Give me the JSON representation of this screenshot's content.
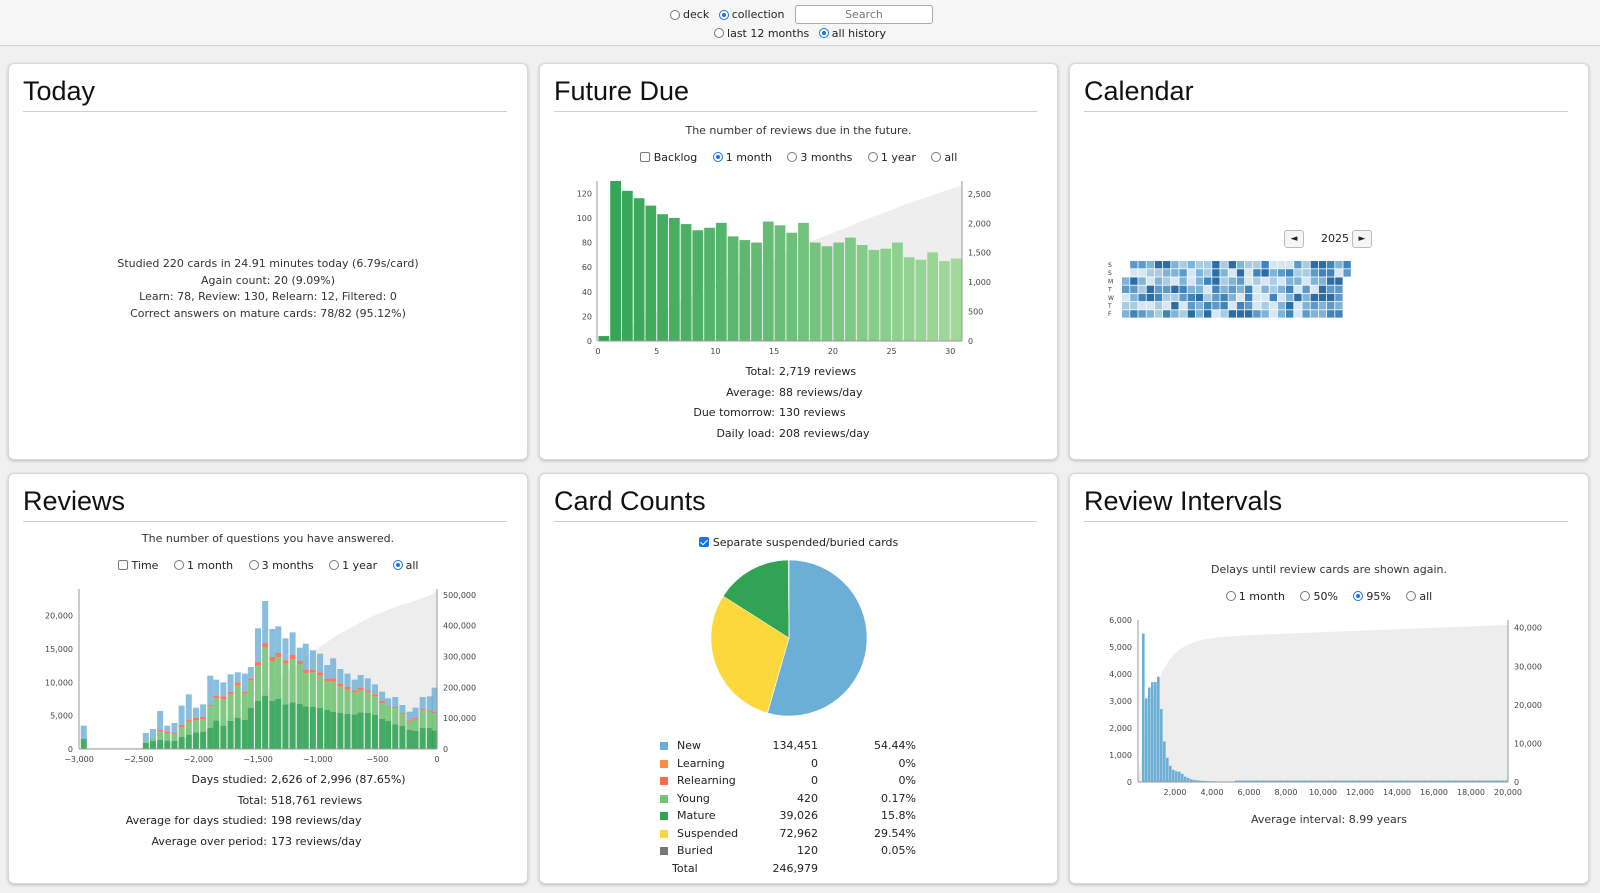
{
  "topbar": {
    "scope": [
      {
        "label": "deck",
        "selected": false
      },
      {
        "label": "collection",
        "selected": true
      }
    ],
    "search_placeholder": "Search",
    "range": [
      {
        "label": "last 12 months",
        "selected": false
      },
      {
        "label": "all history",
        "selected": true
      }
    ]
  },
  "today": {
    "title": "Today",
    "lines": [
      "Studied 220 cards in 24.91 minutes today (6.79s/card)",
      "Again count: 20 (9.09%)",
      "Learn: 78, Review: 130, Relearn: 12, Filtered: 0",
      "Correct answers on mature cards: 78/82 (95.12%)"
    ]
  },
  "future_due": {
    "title": "Future Due",
    "subtitle": "The number of reviews due in the future.",
    "backlog_label": "Backlog",
    "options": [
      {
        "label": "1 month",
        "selected": true
      },
      {
        "label": "3 months",
        "selected": false
      },
      {
        "label": "1 year",
        "selected": false
      },
      {
        "label": "all",
        "selected": false
      }
    ],
    "stats": [
      {
        "label": "Total:",
        "value": "2,719 reviews"
      },
      {
        "label": "Average:",
        "value": "88 reviews/day"
      },
      {
        "label": "Due tomorrow:",
        "value": "130 reviews"
      },
      {
        "label": "Daily load:",
        "value": "208 reviews/day"
      }
    ]
  },
  "calendar": {
    "title": "Calendar",
    "year": "2025",
    "prev_icon": "◄",
    "next_icon": "►",
    "day_labels": [
      "S",
      "S",
      "M",
      "T",
      "W",
      "T",
      "F"
    ]
  },
  "reviews": {
    "title": "Reviews",
    "subtitle": "The number of questions you have answered.",
    "time_label": "Time",
    "options": [
      {
        "label": "1 month",
        "selected": false
      },
      {
        "label": "3 months",
        "selected": false
      },
      {
        "label": "1 year",
        "selected": false
      },
      {
        "label": "all",
        "selected": true
      }
    ],
    "stats": [
      {
        "label": "Days studied:",
        "value": "2,626 of 2,996 (87.65%)"
      },
      {
        "label": "Total:",
        "value": "518,761 reviews"
      },
      {
        "label": "Average for days studied:",
        "value": "198 reviews/day"
      },
      {
        "label": "Average over period:",
        "value": "173 reviews/day"
      }
    ]
  },
  "card_counts": {
    "title": "Card Counts",
    "separate_label": "Separate suspended/buried cards",
    "rows": [
      {
        "label": "New",
        "count": "134,451",
        "pct": "54.44%",
        "color": "#6baed6"
      },
      {
        "label": "Learning",
        "count": "0",
        "pct": "0%",
        "color": "#fd8d3c"
      },
      {
        "label": "Relearning",
        "count": "0",
        "pct": "0%",
        "color": "#fb6a4a"
      },
      {
        "label": "Young",
        "count": "420",
        "pct": "0.17%",
        "color": "#74c476"
      },
      {
        "label": "Mature",
        "count": "39,026",
        "pct": "15.8%",
        "color": "#31a354"
      },
      {
        "label": "Suspended",
        "count": "72,962",
        "pct": "29.54%",
        "color": "#fdd83c"
      },
      {
        "label": "Buried",
        "count": "120",
        "pct": "0.05%",
        "color": "#777777"
      }
    ],
    "total_label": "Total",
    "total_value": "246,979"
  },
  "review_intervals": {
    "title": "Review Intervals",
    "subtitle": "Delays until review cards are shown again.",
    "options": [
      {
        "label": "1 month",
        "selected": false
      },
      {
        "label": "50%",
        "selected": false
      },
      {
        "label": "95%",
        "selected": true
      },
      {
        "label": "all",
        "selected": false
      }
    ],
    "average": "Average interval: 8.99 years"
  },
  "chart_data": [
    {
      "id": "future_due",
      "type": "bar",
      "x": [
        0,
        1,
        2,
        3,
        4,
        5,
        6,
        7,
        8,
        9,
        10,
        11,
        12,
        13,
        14,
        15,
        16,
        17,
        18,
        19,
        20,
        21,
        22,
        23,
        24,
        25,
        26,
        27,
        28,
        29,
        30
      ],
      "values": [
        4,
        130,
        122,
        116,
        110,
        103,
        100,
        95,
        90,
        92,
        96,
        85,
        82,
        80,
        97,
        94,
        88,
        96,
        80,
        77,
        80,
        84,
        78,
        74,
        75,
        80,
        68,
        66,
        72,
        65,
        67
      ],
      "cumulative_ylim": [
        0,
        2719
      ],
      "xticks": [
        0,
        5,
        10,
        15,
        20,
        25,
        30
      ],
      "yticks_left": [
        0,
        20,
        40,
        60,
        80,
        100,
        120
      ],
      "yticks_right": [
        0,
        500,
        1000,
        1500,
        2000,
        2500
      ],
      "ylim_left": [
        0,
        130
      ],
      "ylim_right": [
        0,
        2719
      ],
      "color_start": "#31a354",
      "color_end": "#a1d99b"
    },
    {
      "id": "reviews",
      "type": "bar",
      "xlim": [
        -3000,
        0
      ],
      "xticks": [
        -3000,
        -2500,
        -2000,
        -1500,
        -1000,
        -500,
        0
      ],
      "yticks_left": [
        0,
        5000,
        10000,
        15000,
        20000
      ],
      "yticks_right": [
        0,
        100000,
        200000,
        300000,
        400000,
        500000
      ],
      "ylim_left": [
        0,
        24000
      ],
      "ylim_right": [
        0,
        518761
      ],
      "series": [
        {
          "name": "Mature",
          "color": "#31a354",
          "values": [
            1500,
            0,
            0,
            0,
            0,
            0,
            0,
            0,
            0,
            900,
            1200,
            1400,
            1300,
            1200,
            1800,
            2100,
            2500,
            2600,
            3200,
            4300,
            3500,
            4200,
            4700,
            4400,
            6200,
            7200,
            8000,
            7200,
            7500,
            6700,
            7000,
            6800,
            6400,
            6300,
            6200,
            5900,
            5600,
            5400,
            5300,
            5200,
            5500,
            5400,
            5100,
            4500,
            4200,
            3700,
            3500,
            2900,
            2700,
            3200,
            3200,
            2800
          ]
        },
        {
          "name": "Young",
          "color": "#74c476",
          "values": [
            0,
            0,
            0,
            0,
            0,
            0,
            0,
            0,
            0,
            200,
            500,
            1200,
            1000,
            1000,
            1500,
            2000,
            1800,
            1900,
            3200,
            3300,
            3900,
            4000,
            4800,
            3900,
            4100,
            5300,
            7200,
            6000,
            6300,
            6100,
            6500,
            5900,
            5000,
            5200,
            4800,
            4200,
            4500,
            4000,
            3600,
            3300,
            3300,
            3100,
            2800,
            2400,
            2000,
            2400,
            1700,
            1200,
            1800,
            2600,
            2400,
            2600
          ]
        },
        {
          "name": "Relearning",
          "color": "#fb6a4a",
          "values": [
            0,
            0,
            0,
            0,
            0,
            0,
            0,
            0,
            0,
            0,
            0,
            300,
            300,
            200,
            300,
            300,
            400,
            300,
            200,
            400,
            500,
            400,
            500,
            300,
            300,
            600,
            700,
            600,
            600,
            500,
            600,
            500,
            500,
            400,
            500,
            400,
            500,
            400,
            400,
            300,
            400,
            300,
            300,
            300,
            200,
            200,
            200,
            200,
            200,
            200,
            200,
            200
          ]
        },
        {
          "name": "New",
          "color": "#6baed6",
          "values": [
            2000,
            0,
            0,
            0,
            0,
            0,
            0,
            0,
            0,
            1300,
            1300,
            2800,
            900,
            1500,
            2900,
            3800,
            1500,
            1900,
            4400,
            2400,
            2100,
            2600,
            1500,
            2700,
            1700,
            5000,
            6300,
            4200,
            4000,
            3300,
            3400,
            2000,
            3900,
            2900,
            2800,
            2100,
            3000,
            2200,
            2000,
            1600,
            1900,
            1800,
            1500,
            1400,
            1200,
            1500,
            1200,
            1300,
            1500,
            1800,
            2100,
            3600
          ]
        }
      ],
      "x": [
        -2960,
        -2900,
        -2840,
        -2780,
        -2720,
        -2660,
        -2600,
        -2540,
        -2480,
        -2440,
        -2380,
        -2320,
        -2260,
        -2200,
        -2140,
        -2080,
        -2020,
        -1960,
        -1900,
        -1850,
        -1790,
        -1730,
        -1670,
        -1610,
        -1560,
        -1500,
        -1440,
        -1380,
        -1330,
        -1270,
        -1210,
        -1150,
        -1100,
        -1040,
        -980,
        -920,
        -870,
        -810,
        -750,
        -690,
        -640,
        -580,
        -520,
        -460,
        -410,
        -350,
        -290,
        -230,
        -180,
        -120,
        -60,
        -20
      ]
    },
    {
      "id": "card_counts",
      "type": "pie",
      "labels": [
        "New",
        "Learning",
        "Relearning",
        "Young",
        "Mature",
        "Suspended",
        "Buried"
      ],
      "values": [
        134451,
        0,
        0,
        420,
        39026,
        72962,
        120
      ],
      "colors": [
        "#6baed6",
        "#fd8d3c",
        "#fb6a4a",
        "#74c476",
        "#31a354",
        "#fdd83c",
        "#777777"
      ]
    },
    {
      "id": "review_intervals",
      "type": "bar",
      "xticks": [
        2000,
        4000,
        6000,
        8000,
        10000,
        12000,
        14000,
        16000,
        18000,
        20000
      ],
      "yticks_left": [
        0,
        1000,
        2000,
        3000,
        4000,
        5000,
        6000
      ],
      "yticks_right": [
        0,
        10000,
        20000,
        30000,
        40000
      ],
      "xlim": [
        0,
        20000
      ],
      "ylim_left": [
        0,
        6000
      ],
      "ylim_right": [
        0,
        42000
      ],
      "values": [
        5500,
        3100,
        3500,
        3700,
        3700,
        3900,
        2700,
        1500,
        900,
        600,
        450,
        400,
        380,
        300,
        200,
        150,
        100,
        80,
        60,
        50,
        40,
        35,
        30,
        28,
        25,
        20,
        18,
        16,
        14,
        12,
        10
      ],
      "color": "#6baed6"
    }
  ]
}
